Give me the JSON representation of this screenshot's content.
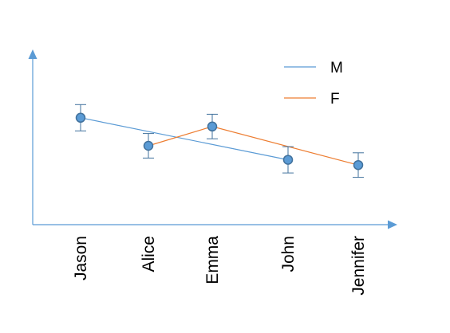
{
  "chart_data": {
    "type": "line",
    "categories": [
      "Jason",
      "Alice",
      "Emma",
      "John",
      "Jennifer"
    ],
    "ylim": [
      0,
      10
    ],
    "grid": false,
    "legend_position": "top-right",
    "colors": {
      "axis": "#5B9BD5",
      "M": "#5B9BD5",
      "F": "#ED7D31",
      "point_fill": "#5B9BD5",
      "point_edge": "#41719C",
      "error_bar": "#41719C"
    },
    "series": [
      {
        "name": "M",
        "points": [
          {
            "category": "Jason",
            "value": 6.1
          },
          {
            "category": "John",
            "value": 3.7
          }
        ]
      },
      {
        "name": "F",
        "points": [
          {
            "category": "Alice",
            "value": 4.5
          },
          {
            "category": "Emma",
            "value": 5.6
          },
          {
            "category": "Jennifer",
            "value": 3.4
          }
        ]
      }
    ],
    "markers": [
      {
        "category": "Jason",
        "value": 6.1,
        "err": 0.75
      },
      {
        "category": "Alice",
        "value": 4.5,
        "err": 0.7
      },
      {
        "category": "Emma",
        "value": 5.6,
        "err": 0.7
      },
      {
        "category": "John",
        "value": 3.7,
        "err": 0.75
      },
      {
        "category": "Jennifer",
        "value": 3.4,
        "err": 0.7
      }
    ]
  }
}
